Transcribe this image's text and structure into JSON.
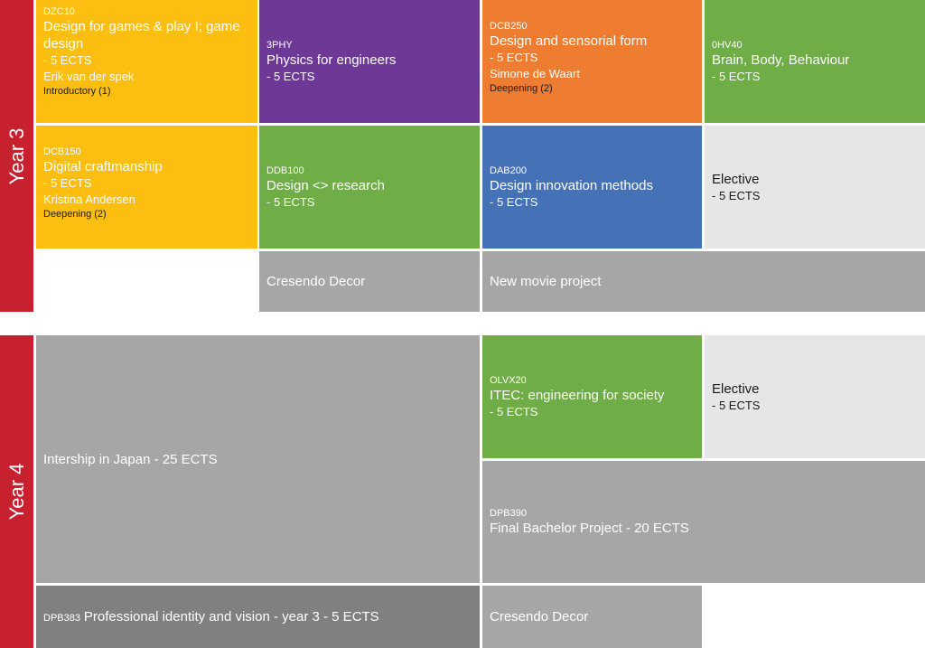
{
  "colors": {
    "year_bar": "#c7202f",
    "yellow": "#fcbf11",
    "purple": "#6e3896",
    "orange": "#ef7d31",
    "green": "#6fad47",
    "blue": "#4572b7",
    "light_gray": "#e5e6e5",
    "gray": "#a6a6a6",
    "dark_gray": "#808080"
  },
  "year3": {
    "label": "Year 3",
    "courses": [
      {
        "code": "DZC10",
        "title": "Design for games & play I; game design",
        "ects": "- 5 ECTS",
        "teacher": "Erik van der spek",
        "level": "Introductory (1)"
      },
      {
        "code": "3PHY",
        "title": "Physics for engineers",
        "ects": "- 5 ECTS"
      },
      {
        "code": "DCB250",
        "title": "Design and sensorial form",
        "ects": "- 5 ECTS",
        "teacher": "Simone de Waart",
        "level": "Deepening (2)"
      },
      {
        "code": "0HV40",
        "title": "Brain, Body, Behaviour",
        "ects": "- 5 ECTS"
      },
      {
        "code": "DCB150",
        "title": "Digital craftmanship",
        "ects": "- 5 ECTS",
        "teacher": "Kristina Andersen",
        "level": "Deepening (2)"
      },
      {
        "code": "DDB100",
        "title": "Design <> research",
        "ects": "- 5 ECTS"
      },
      {
        "code": "DAB200",
        "title": "Design innovation methods",
        "ects": "- 5 ECTS"
      },
      {
        "title": "Elective",
        "ects": "- 5 ECTS"
      }
    ],
    "projects": [
      {
        "title": "Cresendo Decor"
      },
      {
        "title": "New movie project"
      }
    ]
  },
  "year4": {
    "label": "Year 4",
    "internship": {
      "title": "Intership in Japan - 25 ECTS"
    },
    "itec": {
      "code": "OLVX20",
      "title": "ITEC: engineering for society",
      "ects": "- 5 ECTS"
    },
    "elective": {
      "title": "Elective",
      "ects": "- 5 ECTS"
    },
    "fbp": {
      "code": "DPB390",
      "title": "Final Bachelor Project - 20 ECTS"
    },
    "pidv": {
      "code": "DPB383",
      "title": "Professional identity and vision - year 3 - 5 ECTS"
    },
    "project": {
      "title": "Cresendo Decor"
    }
  }
}
